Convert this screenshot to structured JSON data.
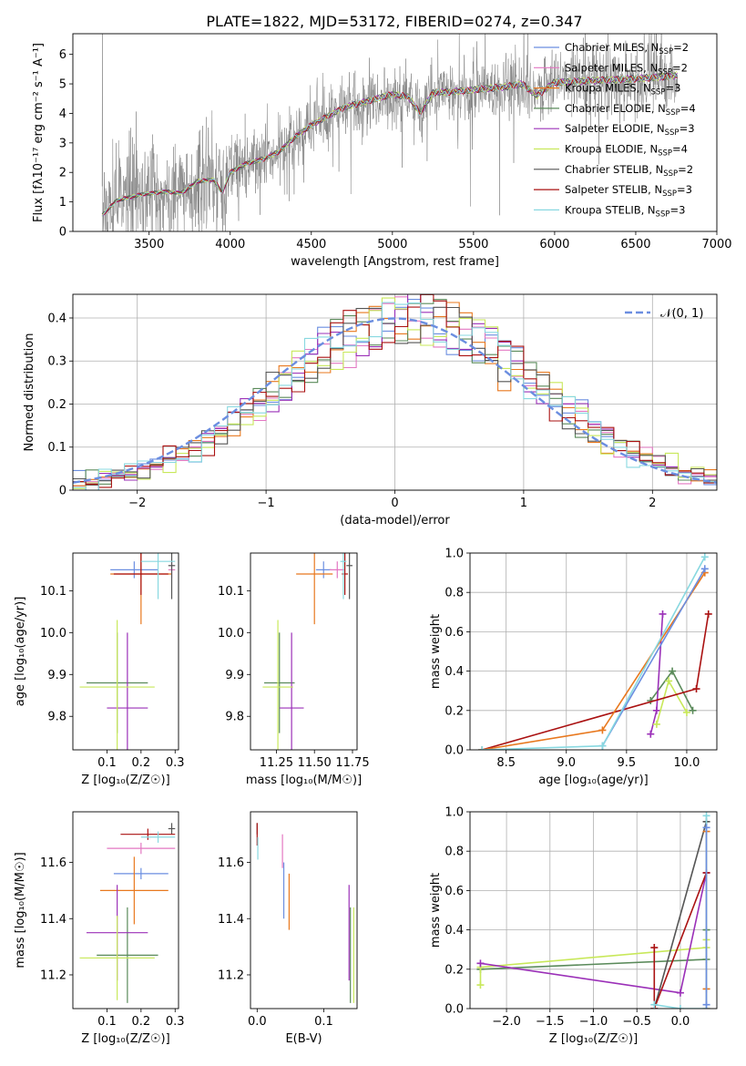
{
  "figure": {
    "title": "PLATE=1822, MJD=53172, FIBERID=0274, z=0.347"
  },
  "models": [
    {
      "name": "Chabrier MILES, N",
      "sub": "SSP",
      "tail": "=2",
      "color": "#6b8ee0"
    },
    {
      "name": "Salpeter MILES, N",
      "sub": "SSP",
      "tail": "=2",
      "color": "#e377c2"
    },
    {
      "name": "Kroupa MILES, N",
      "sub": "SSP",
      "tail": "=3",
      "color": "#e8781e"
    },
    {
      "name": "Chabrier ELODIE, N",
      "sub": "SSP",
      "tail": "=4",
      "color": "#5a8a5a"
    },
    {
      "name": "Salpeter ELODIE, N",
      "sub": "SSP",
      "tail": "=3",
      "color": "#9b30b8"
    },
    {
      "name": "Kroupa ELODIE, N",
      "sub": "SSP",
      "tail": "=4",
      "color": "#c8e85a"
    },
    {
      "name": "Chabrier STELIB, N",
      "sub": "SSP",
      "tail": "=2",
      "color": "#555555"
    },
    {
      "name": "Salpeter STELIB, N",
      "sub": "SSP",
      "tail": "=3",
      "color": "#aa1111"
    },
    {
      "name": "Kroupa STELIB, N",
      "sub": "SSP",
      "tail": "=3",
      "color": "#88d8e0"
    }
  ],
  "data_color": "#808080",
  "normal_color": "#6b8ee0",
  "chart_data": [
    {
      "type": "line",
      "id": "spectrum",
      "xlabel": "wavelength [Angstrom, rest frame]",
      "ylabel": "Flux [fλ10⁻¹⁷ erg cm⁻² s⁻¹ A⁻¹]",
      "xlim": [
        3030,
        7000
      ],
      "ylim": [
        0,
        6.7
      ],
      "xticks": [
        3500,
        4000,
        4500,
        5000,
        5500,
        6000,
        6500,
        7000
      ],
      "yticks": [
        0,
        1,
        2,
        3,
        4,
        5,
        6
      ],
      "data_range": [
        3210,
        6760
      ],
      "model_shape": [
        [
          3210,
          0.55
        ],
        [
          3300,
          1.05
        ],
        [
          3450,
          1.25
        ],
        [
          3600,
          1.35
        ],
        [
          3700,
          1.3
        ],
        [
          3800,
          1.7
        ],
        [
          3900,
          1.75
        ],
        [
          3950,
          1.3
        ],
        [
          4000,
          2.0
        ],
        [
          4100,
          2.3
        ],
        [
          4200,
          2.45
        ],
        [
          4300,
          2.7
        ],
        [
          4400,
          3.2
        ],
        [
          4500,
          3.6
        ],
        [
          4600,
          3.9
        ],
        [
          4700,
          4.2
        ],
        [
          4800,
          4.35
        ],
        [
          4900,
          4.5
        ],
        [
          5000,
          4.65
        ],
        [
          5100,
          4.55
        ],
        [
          5170,
          4.0
        ],
        [
          5250,
          4.7
        ],
        [
          5400,
          4.75
        ],
        [
          5500,
          4.8
        ],
        [
          5600,
          4.85
        ],
        [
          5700,
          4.9
        ],
        [
          5800,
          5.0
        ],
        [
          5890,
          4.6
        ],
        [
          6000,
          5.05
        ],
        [
          6200,
          5.1
        ],
        [
          6400,
          5.15
        ],
        [
          6560,
          5.2
        ],
        [
          6700,
          5.25
        ],
        [
          6760,
          5.3
        ]
      ]
    },
    {
      "type": "line",
      "id": "residual-hist",
      "xlabel": "(data-model)/error",
      "ylabel": "Normed distribution",
      "xlim": [
        -2.5,
        2.5
      ],
      "ylim": [
        0,
        0.455
      ],
      "xticks": [
        -2,
        -1,
        0,
        1,
        2
      ],
      "yticks": [
        0,
        0.1,
        0.2,
        0.3,
        0.4
      ],
      "legend": "𝒩(0, 1)",
      "bin_width": 0.1
    },
    {
      "type": "scatter",
      "id": "z-age",
      "xlabel": "Z [log₁₀(Z/Z☉)]",
      "ylabel": "age  [log₁₀(age/yr)]",
      "xlim": [
        0.0,
        0.31
      ],
      "ylim": [
        9.72,
        10.19
      ],
      "xticks": [
        0.1,
        0.2,
        0.3
      ],
      "yticks": [
        9.8,
        9.9,
        10.0,
        10.1
      ],
      "points": [
        {
          "m": 0,
          "x": 0.18,
          "y": 10.15,
          "ex": 0.07,
          "ey": 0.02
        },
        {
          "m": 1,
          "x": 0.29,
          "y": 10.15,
          "ex": 0.01,
          "ey": 0.02
        },
        {
          "m": 2,
          "x": 0.2,
          "y": 10.14,
          "ex": 0.09,
          "ey": 0.12
        },
        {
          "m": 3,
          "x": 0.13,
          "y": 9.88,
          "ex": 0.09,
          "ey": 0.12
        },
        {
          "m": 4,
          "x": 0.16,
          "y": 9.82,
          "ex": 0.06,
          "ey": 0.18
        },
        {
          "m": 5,
          "x": 0.13,
          "y": 9.87,
          "ex": 0.11,
          "ey": 0.16
        },
        {
          "m": 6,
          "x": 0.29,
          "y": 10.16,
          "ex": 0.01,
          "ey": 0.08
        },
        {
          "m": 7,
          "x": 0.2,
          "y": 10.14,
          "ex": 0.08,
          "ey": 0.05
        },
        {
          "m": 8,
          "x": 0.25,
          "y": 10.17,
          "ex": 0.05,
          "ey": 0.09
        }
      ]
    },
    {
      "type": "scatter",
      "id": "mass-age",
      "xlabel": "mass [log₁₀(M/M☉)]",
      "ylabel": "",
      "xlim": [
        11.08,
        11.78
      ],
      "ylim": [
        9.72,
        10.19
      ],
      "xticks": [
        11.25,
        11.5,
        11.75
      ],
      "yticks": [
        9.8,
        9.9,
        10.0,
        10.1
      ],
      "points": [
        {
          "m": 0,
          "x": 11.56,
          "y": 10.15,
          "ex": 0.05,
          "ey": 0.02
        },
        {
          "m": 1,
          "x": 11.65,
          "y": 10.15,
          "ex": 0.05,
          "ey": 0.02
        },
        {
          "m": 2,
          "x": 11.5,
          "y": 10.14,
          "ex": 0.12,
          "ey": 0.12
        },
        {
          "m": 3,
          "x": 11.27,
          "y": 9.88,
          "ex": 0.1,
          "ey": 0.12
        },
        {
          "m": 4,
          "x": 11.35,
          "y": 9.82,
          "ex": 0.08,
          "ey": 0.18
        },
        {
          "m": 5,
          "x": 11.26,
          "y": 9.87,
          "ex": 0.1,
          "ey": 0.16
        },
        {
          "m": 6,
          "x": 11.73,
          "y": 10.16,
          "ex": 0.02,
          "ey": 0.08
        },
        {
          "m": 7,
          "x": 11.7,
          "y": 10.14,
          "ex": 0.02,
          "ey": 0.05
        },
        {
          "m": 8,
          "x": 11.69,
          "y": 10.17,
          "ex": 0.02,
          "ey": 0.09
        }
      ]
    },
    {
      "type": "line",
      "id": "age-weight",
      "xlabel": "age  [log₁₀(age/yr)]",
      "ylabel": "mass weight",
      "xlim": [
        8.2,
        10.25
      ],
      "ylim": [
        0,
        1.0
      ],
      "xticks": [
        8.5,
        9.0,
        9.5,
        10.0
      ],
      "yticks": [
        0,
        0.2,
        0.4,
        0.6,
        0.8,
        1.0
      ],
      "series": [
        {
          "m": 3,
          "x": [
            9.7,
            9.88,
            10.05
          ],
          "y": [
            0.25,
            0.4,
            0.2
          ]
        },
        {
          "m": 4,
          "x": [
            9.7,
            9.75,
            9.8
          ],
          "y": [
            0.08,
            0.2,
            0.69
          ]
        },
        {
          "m": 5,
          "x": [
            9.75,
            9.85,
            10.0
          ],
          "y": [
            0.13,
            0.35,
            0.19
          ]
        },
        {
          "m": 7,
          "x": [
            8.3,
            10.08,
            10.18
          ],
          "y": [
            0.0,
            0.31,
            0.69
          ]
        },
        {
          "m": 2,
          "x": [
            8.3,
            9.3,
            10.15
          ],
          "y": [
            0.0,
            0.1,
            0.9
          ]
        },
        {
          "m": 0,
          "x": [
            9.3,
            10.15
          ],
          "y": [
            0.02,
            0.92
          ]
        },
        {
          "m": 8,
          "x": [
            8.3,
            9.3,
            10.15
          ],
          "y": [
            0.0,
            0.02,
            0.98
          ]
        }
      ]
    },
    {
      "type": "scatter",
      "id": "z-mass",
      "xlabel": "Z [log₁₀(Z/Z☉)]",
      "ylabel": "mass [log₁₀(M/M☉)]",
      "xlim": [
        0.0,
        0.31
      ],
      "ylim": [
        11.08,
        11.78
      ],
      "xticks": [
        0.1,
        0.2,
        0.3
      ],
      "yticks": [
        11.2,
        11.4,
        11.6
      ],
      "points": [
        {
          "m": 0,
          "x": 0.2,
          "y": 11.56,
          "ex": 0.08,
          "ey": 0.02
        },
        {
          "m": 1,
          "x": 0.2,
          "y": 11.65,
          "ex": 0.1,
          "ey": 0.02
        },
        {
          "m": 2,
          "x": 0.18,
          "y": 11.5,
          "ex": 0.1,
          "ey": 0.12
        },
        {
          "m": 3,
          "x": 0.16,
          "y": 11.27,
          "ex": 0.09,
          "ey": 0.17
        },
        {
          "m": 4,
          "x": 0.13,
          "y": 11.35,
          "ex": 0.09,
          "ey": 0.17
        },
        {
          "m": 5,
          "x": 0.13,
          "y": 11.26,
          "ex": 0.11,
          "ey": 0.15
        },
        {
          "m": 6,
          "x": 0.29,
          "y": 11.72,
          "ex": 0.01,
          "ey": 0.02
        },
        {
          "m": 7,
          "x": 0.22,
          "y": 11.7,
          "ex": 0.08,
          "ey": 0.02
        },
        {
          "m": 8,
          "x": 0.25,
          "y": 11.69,
          "ex": 0.05,
          "ey": 0.02
        }
      ]
    },
    {
      "type": "scatter",
      "id": "ebv-mass",
      "xlabel": "E(B-V)",
      "ylabel": "",
      "xlim": [
        -0.01,
        0.15
      ],
      "ylim": [
        11.08,
        11.78
      ],
      "xticks": [
        0.0,
        0.1
      ],
      "yticks": [
        11.2,
        11.4,
        11.6
      ],
      "points": [
        {
          "m": 0,
          "x": 0.04,
          "y": 11.5,
          "ex": 0,
          "ey": 0.1
        },
        {
          "m": 1,
          "x": 0.038,
          "y": 11.64,
          "ex": 0,
          "ey": 0.06
        },
        {
          "m": 2,
          "x": 0.048,
          "y": 11.46,
          "ex": 0,
          "ey": 0.1
        },
        {
          "m": 3,
          "x": 0.14,
          "y": 11.27,
          "ex": 0,
          "ey": 0.17
        },
        {
          "m": 4,
          "x": 0.138,
          "y": 11.35,
          "ex": 0,
          "ey": 0.17
        },
        {
          "m": 5,
          "x": 0.145,
          "y": 11.27,
          "ex": 0,
          "ey": 0.17
        },
        {
          "m": 6,
          "x": 0.0,
          "y": 11.72,
          "ex": 0,
          "ey": 0.02
        },
        {
          "m": 7,
          "x": 0.0,
          "y": 11.7,
          "ex": 0,
          "ey": 0.04
        },
        {
          "m": 8,
          "x": 0.001,
          "y": 11.65,
          "ex": 0,
          "ey": 0.04
        }
      ]
    },
    {
      "type": "line",
      "id": "z-weight",
      "xlabel": "Z [log₁₀(Z/Z☉)]",
      "ylabel": "mass weight",
      "xlim": [
        -2.42,
        0.42
      ],
      "ylim": [
        0,
        1.0
      ],
      "xticks": [
        -2.0,
        -1.5,
        -1.0,
        -0.5,
        0.0
      ],
      "yticks": [
        0,
        0.2,
        0.4,
        0.6,
        0.8,
        1.0
      ],
      "series": [
        {
          "m": 3,
          "x": [
            -2.3,
            0.3,
            0.3
          ],
          "y": [
            0.2,
            0.25,
            0.4
          ]
        },
        {
          "m": 5,
          "x": [
            -2.3,
            -2.3,
            0.3,
            0.3
          ],
          "y": [
            0.12,
            0.21,
            0.31,
            0.35
          ]
        },
        {
          "m": 4,
          "x": [
            -2.3,
            0.0,
            0.3
          ],
          "y": [
            0.23,
            0.08,
            0.69
          ]
        },
        {
          "m": 6,
          "x": [
            -0.3,
            0.3
          ],
          "y": [
            0.0,
            0.95
          ]
        },
        {
          "m": 7,
          "x": [
            -0.3,
            -0.3,
            0.3
          ],
          "y": [
            0.31,
            0.0,
            0.69
          ]
        },
        {
          "m": 2,
          "x": [
            0.3,
            0.3,
            0.3
          ],
          "y": [
            0.0,
            0.1,
            0.9
          ]
        },
        {
          "m": 8,
          "x": [
            -0.3,
            0.0,
            0.3,
            0.3
          ],
          "y": [
            0.02,
            0.0,
            0.0,
            0.98
          ]
        },
        {
          "m": 0,
          "x": [
            0.3,
            0.3
          ],
          "y": [
            0.02,
            0.92
          ]
        }
      ]
    }
  ]
}
